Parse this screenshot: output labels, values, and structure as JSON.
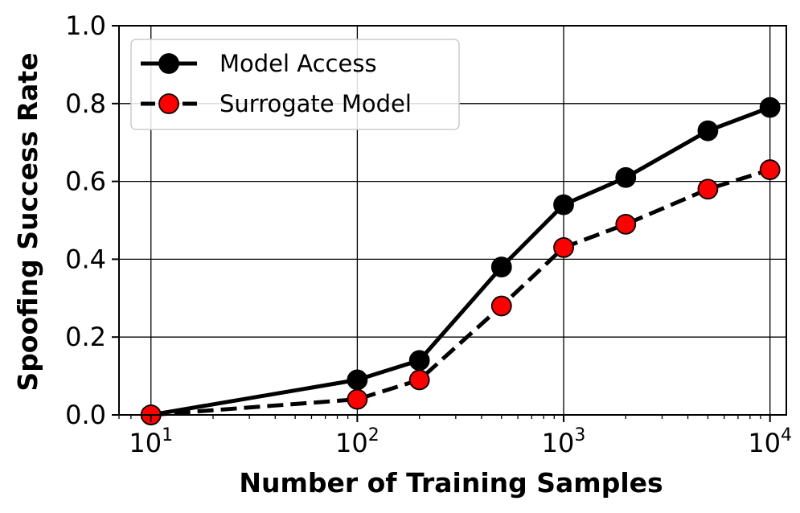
{
  "chart_data": {
    "type": "line",
    "xlabel": "Number of Training Samples",
    "ylabel": "Spoofing Success Rate",
    "x_scale": "log",
    "xlim": [
      7,
      12000
    ],
    "ylim": [
      0,
      1.0
    ],
    "grid": true,
    "legend_position": "upper-left",
    "x_ticks": [
      {
        "value": 10,
        "base": "10",
        "exp": "1"
      },
      {
        "value": 100,
        "base": "10",
        "exp": "2"
      },
      {
        "value": 1000,
        "base": "10",
        "exp": "3"
      },
      {
        "value": 10000,
        "base": "10",
        "exp": "4"
      }
    ],
    "y_ticks": [
      {
        "value": 0.0,
        "label": "0.0"
      },
      {
        "value": 0.2,
        "label": "0.2"
      },
      {
        "value": 0.4,
        "label": "0.4"
      },
      {
        "value": 0.6,
        "label": "0.6"
      },
      {
        "value": 0.8,
        "label": "0.8"
      },
      {
        "value": 1.0,
        "label": "1.0"
      }
    ],
    "x": [
      10,
      100,
      200,
      500,
      1000,
      2000,
      5000,
      10000
    ],
    "series": [
      {
        "name": "Model Access",
        "values": [
          0.0,
          0.09,
          0.14,
          0.38,
          0.54,
          0.61,
          0.73,
          0.79
        ],
        "line_color": "#000000",
        "marker_color": "#000000",
        "line_style": "solid"
      },
      {
        "name": "Surrogate Model",
        "values": [
          0.0,
          0.04,
          0.09,
          0.28,
          0.43,
          0.49,
          0.58,
          0.63
        ],
        "line_color": "#000000",
        "marker_color": "#ff0000",
        "line_style": "dashed"
      }
    ]
  }
}
